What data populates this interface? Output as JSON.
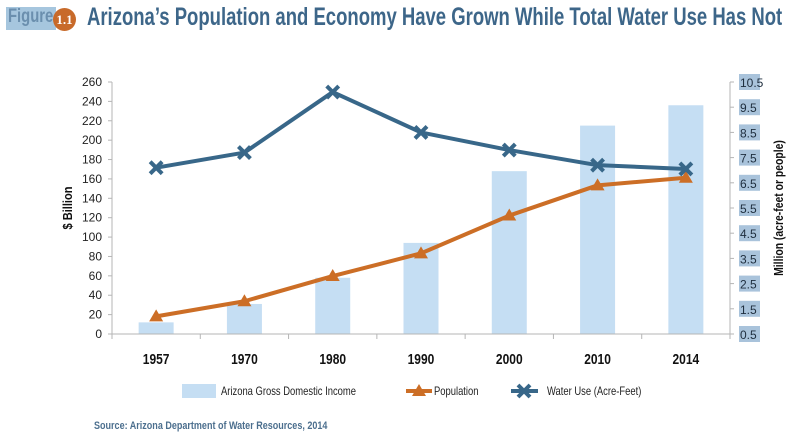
{
  "header": {
    "figure_label": "Figure",
    "figure_number": "1.1",
    "title": "Arizona’s Population and Economy Have Grown While Total Water Use Has Not"
  },
  "source": "Source: Arizona Department of Water Resources, 2014",
  "colors": {
    "bar": "#c5def3",
    "population": "#cc6e26",
    "water": "#386789",
    "figure_box": "#a6c6de",
    "figure_number_bg": "#c86a2a",
    "title": "#3d6689",
    "right_tick_bg": "#a9c3db"
  },
  "chart_data": {
    "type": "bar",
    "title": "Arizona’s Population and Economy Have Grown While Total Water Use Has Not",
    "categories": [
      "1957",
      "1970",
      "1980",
      "1990",
      "2000",
      "2010",
      "2014"
    ],
    "ylabel": "$ Billion",
    "y2label": "Million (acre-feet or people)",
    "ylim": [
      0,
      260
    ],
    "y2lim": [
      0.5,
      10.5
    ],
    "yticks": [
      "0",
      "20",
      "40",
      "60",
      "80",
      "100",
      "120",
      "140",
      "160",
      "180",
      "200",
      "220",
      "240",
      "260"
    ],
    "y2ticks": [
      "0.5",
      "1.5",
      "2.5",
      "3.5",
      "4.5",
      "5.5",
      "6.5",
      "7.5",
      "8.5",
      "9.5",
      "10.5"
    ],
    "grid": false,
    "legend_position": "bottom",
    "series": [
      {
        "name": "Arizona Gross Domestic Income",
        "type": "bar",
        "axis": "left",
        "values": [
          12,
          31,
          58,
          94,
          168,
          215,
          236
        ]
      },
      {
        "name": "Population",
        "type": "line",
        "axis": "right",
        "marker": "triangle",
        "values": [
          1.2,
          1.8,
          2.8,
          3.7,
          5.2,
          6.4,
          6.7
        ]
      },
      {
        "name": "Water Use (Acre-Feet)",
        "type": "line",
        "axis": "right",
        "marker": "x",
        "values": [
          7.1,
          7.7,
          10.1,
          8.5,
          7.8,
          7.2,
          7.05
        ]
      }
    ]
  }
}
